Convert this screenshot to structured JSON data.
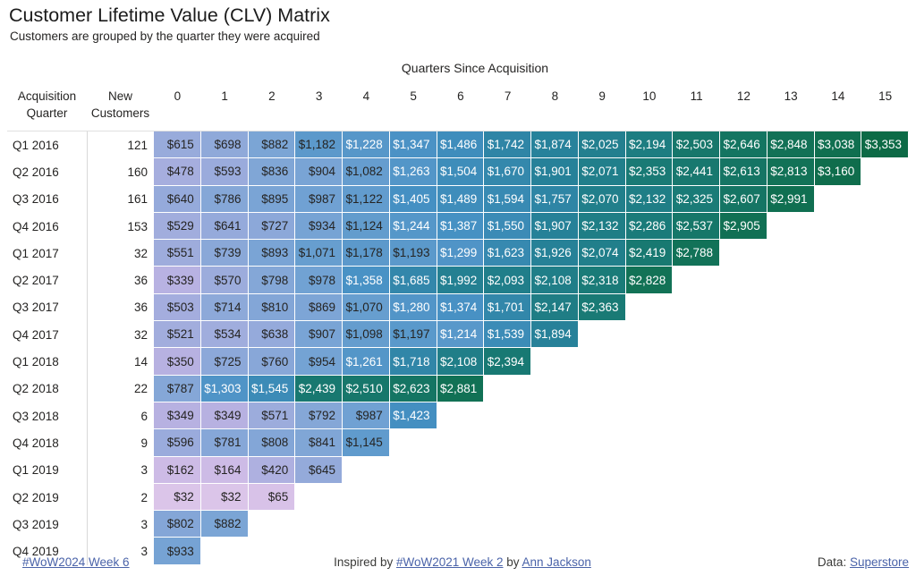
{
  "header": {
    "title": "Customer Lifetime Value (CLV) Matrix",
    "subtitle": "Customers are grouped by the quarter they were acquired"
  },
  "chart_data": {
    "type": "heatmap",
    "title": "Customer Lifetime Value (CLV) Matrix",
    "subtitle": "Customers are grouped by the quarter they were acquired",
    "x_group_label": "Quarters Since Acquisition",
    "row_label_header": "Acquisition Quarter",
    "customer_count_header": "New Customers",
    "x_categories": [
      "0",
      "1",
      "2",
      "3",
      "4",
      "5",
      "6",
      "7",
      "8",
      "9",
      "10",
      "11",
      "12",
      "13",
      "14",
      "15"
    ],
    "value_prefix": "$",
    "value_range": [
      32,
      3353
    ],
    "rows": [
      {
        "quarter": "Q1 2016",
        "new_customers": 121,
        "clv": [
          615,
          698,
          882,
          1182,
          1228,
          1347,
          1486,
          1742,
          1874,
          2025,
          2194,
          2503,
          2646,
          2848,
          3038,
          3353
        ]
      },
      {
        "quarter": "Q2 2016",
        "new_customers": 160,
        "clv": [
          478,
          593,
          836,
          904,
          1082,
          1263,
          1504,
          1670,
          1901,
          2071,
          2353,
          2441,
          2613,
          2813,
          3160
        ]
      },
      {
        "quarter": "Q3 2016",
        "new_customers": 161,
        "clv": [
          640,
          786,
          895,
          987,
          1122,
          1405,
          1489,
          1594,
          1757,
          2070,
          2132,
          2325,
          2607,
          2991
        ]
      },
      {
        "quarter": "Q4 2016",
        "new_customers": 153,
        "clv": [
          529,
          641,
          727,
          934,
          1124,
          1244,
          1387,
          1550,
          1907,
          2132,
          2286,
          2537,
          2905
        ]
      },
      {
        "quarter": "Q1 2017",
        "new_customers": 32,
        "clv": [
          551,
          739,
          893,
          1071,
          1178,
          1193,
          1299,
          1623,
          1926,
          2074,
          2419,
          2788
        ]
      },
      {
        "quarter": "Q2 2017",
        "new_customers": 36,
        "clv": [
          339,
          570,
          798,
          978,
          1358,
          1685,
          1992,
          2093,
          2108,
          2318,
          2828
        ]
      },
      {
        "quarter": "Q3 2017",
        "new_customers": 36,
        "clv": [
          503,
          714,
          810,
          869,
          1070,
          1280,
          1374,
          1701,
          2147,
          2363
        ]
      },
      {
        "quarter": "Q4 2017",
        "new_customers": 32,
        "clv": [
          521,
          534,
          638,
          907,
          1098,
          1197,
          1214,
          1539,
          1894
        ]
      },
      {
        "quarter": "Q1 2018",
        "new_customers": 14,
        "clv": [
          350,
          725,
          760,
          954,
          1261,
          1718,
          2108,
          2394
        ]
      },
      {
        "quarter": "Q2 2018",
        "new_customers": 22,
        "clv": [
          787,
          1303,
          1545,
          2439,
          2510,
          2623,
          2881
        ]
      },
      {
        "quarter": "Q3 2018",
        "new_customers": 6,
        "clv": [
          349,
          349,
          571,
          792,
          987,
          1423
        ]
      },
      {
        "quarter": "Q4 2018",
        "new_customers": 9,
        "clv": [
          596,
          781,
          808,
          841,
          1145
        ]
      },
      {
        "quarter": "Q1 2019",
        "new_customers": 3,
        "clv": [
          162,
          164,
          420,
          645
        ]
      },
      {
        "quarter": "Q2 2019",
        "new_customers": 2,
        "clv": [
          32,
          32,
          65
        ]
      },
      {
        "quarter": "Q3 2019",
        "new_customers": 3,
        "clv": [
          802,
          882
        ]
      },
      {
        "quarter": "Q4 2019",
        "new_customers": 3,
        "clv": [
          933
        ]
      }
    ],
    "color_scale": [
      [
        32,
        "#DBC5E9"
      ],
      [
        250,
        "#C4B4E4"
      ],
      [
        480,
        "#A6AEDE"
      ],
      [
        950,
        "#74A3D4"
      ],
      [
        1400,
        "#4590C3"
      ],
      [
        1850,
        "#28829D"
      ],
      [
        2300,
        "#1A7B79"
      ],
      [
        2800,
        "#127257"
      ],
      [
        3353,
        "#0D6A46"
      ]
    ],
    "text_colors": {
      "dark": "#252423",
      "light": "#FFFFFF",
      "light_threshold": 1205
    },
    "legend_position": "none",
    "grid": false
  },
  "footer": {
    "left_link": "#WoW2024 Week 6",
    "inspired_prefix": "Inspired by ",
    "inspired_link1": "#WoW2021 Week 2",
    "inspired_mid": " by ",
    "inspired_link2": "Ann Jackson",
    "data_prefix": "Data: ",
    "data_link": "Superstore"
  }
}
